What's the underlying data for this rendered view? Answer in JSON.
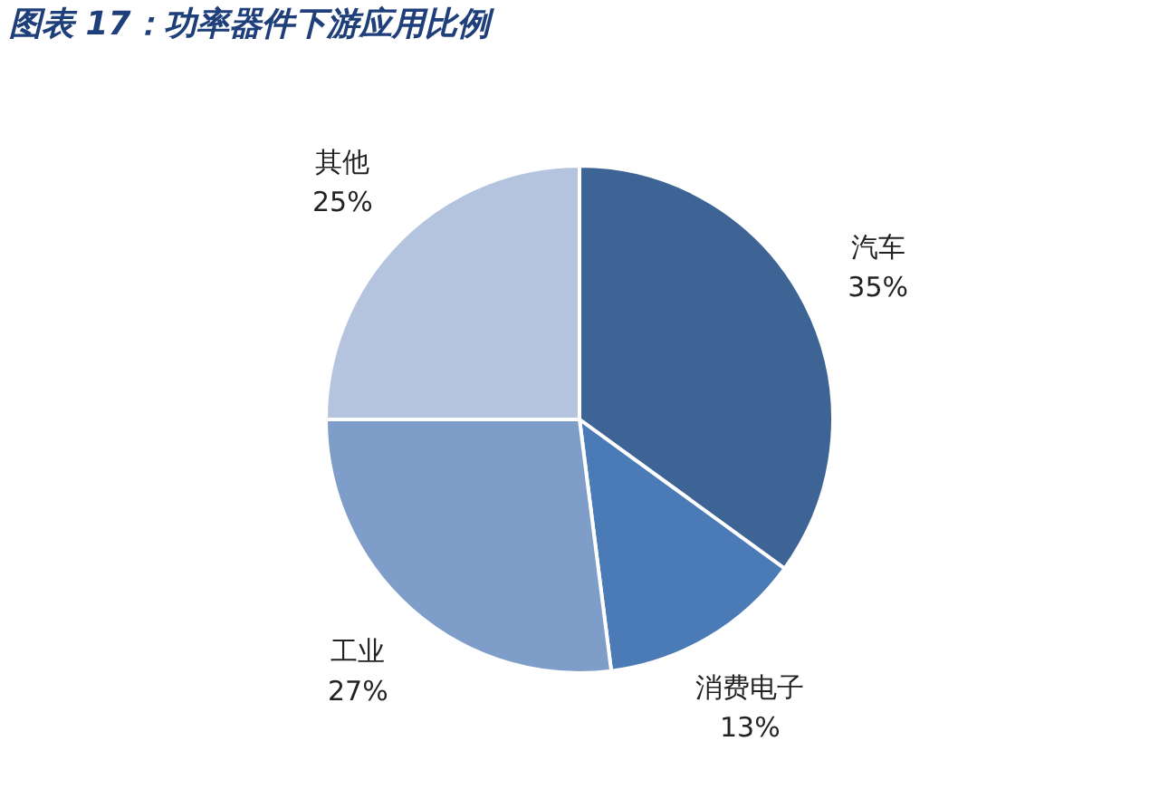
{
  "chart_data": {
    "type": "pie",
    "title": "图表 17：功率器件下游应用比例",
    "categories": [
      "汽车",
      "消费电子",
      "工业",
      "其他"
    ],
    "values": [
      35,
      13,
      27,
      25
    ],
    "value_labels": [
      "35%",
      "13%",
      "27%",
      "25%"
    ],
    "colors": [
      "#3e6496",
      "#4a7bb7",
      "#7e9dc9",
      "#b4c4df"
    ],
    "legend": false
  }
}
